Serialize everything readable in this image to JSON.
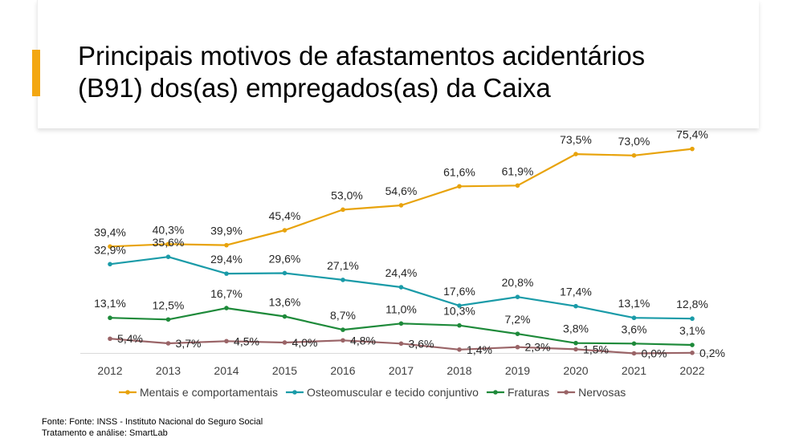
{
  "slide": {
    "title_line1": "Principais motivos de afastamentos acidentários",
    "title_line2": "(B91) dos(as) empregados(as) da Caixa",
    "source_line1": "Fonte: Fonte: INSS - Instituto  Nacional do Seguro Social",
    "source_line2": "Tratamento  e análise: SmartLab",
    "accent_color": "#f3a712"
  },
  "chart_data": {
    "type": "line",
    "categories": [
      "2012",
      "2013",
      "2014",
      "2015",
      "2016",
      "2017",
      "2018",
      "2019",
      "2020",
      "2021",
      "2022"
    ],
    "series": [
      {
        "name": "Mentais e comportamentais",
        "color": "#e8a30c",
        "values": [
          39.4,
          40.3,
          39.9,
          45.4,
          53.0,
          54.6,
          61.6,
          61.9,
          73.5,
          73.0,
          75.4
        ],
        "labels": [
          "39,4%",
          "40,3%",
          "39,9%",
          "45,4%",
          "53,0%",
          "54,6%",
          "61,6%",
          "61,9%",
          "73,5%",
          "73,0%",
          "75,4%"
        ]
      },
      {
        "name": "Osteomuscular e tecido conjuntivo",
        "color": "#1a9ba8",
        "values": [
          32.9,
          35.6,
          29.4,
          29.6,
          27.1,
          24.4,
          17.6,
          20.8,
          17.4,
          13.1,
          12.8
        ],
        "labels": [
          "32,9%",
          "35,6%",
          "29,4%",
          "29,6%",
          "27,1%",
          "24,4%",
          "17,6%",
          "20,8%",
          "17,4%",
          "13,1%",
          "12,8%"
        ]
      },
      {
        "name": "Fraturas",
        "color": "#1e8a3a",
        "values": [
          13.1,
          12.5,
          16.7,
          13.6,
          8.7,
          11.0,
          10.3,
          7.2,
          3.8,
          3.6,
          3.1
        ],
        "labels": [
          "13,1%",
          "12,5%",
          "16,7%",
          "13,6%",
          "8,7%",
          "11,0%",
          "10,3%",
          "7,2%",
          "3,8%",
          "3,6%",
          "3,1%"
        ]
      },
      {
        "name": "Nervosas",
        "color": "#9a6467",
        "values": [
          5.4,
          3.7,
          4.5,
          4.0,
          4.8,
          3.6,
          1.4,
          2.3,
          1.5,
          0.0,
          0.2
        ],
        "labels": [
          "5,4%",
          "3,7%",
          "4,5%",
          "4,0%",
          "4,8%",
          "3,6%",
          "1,4%",
          "2,3%",
          "1,5%",
          "0,0%",
          "0,2%"
        ]
      }
    ],
    "legend_position": "bottom",
    "grid": false
  }
}
